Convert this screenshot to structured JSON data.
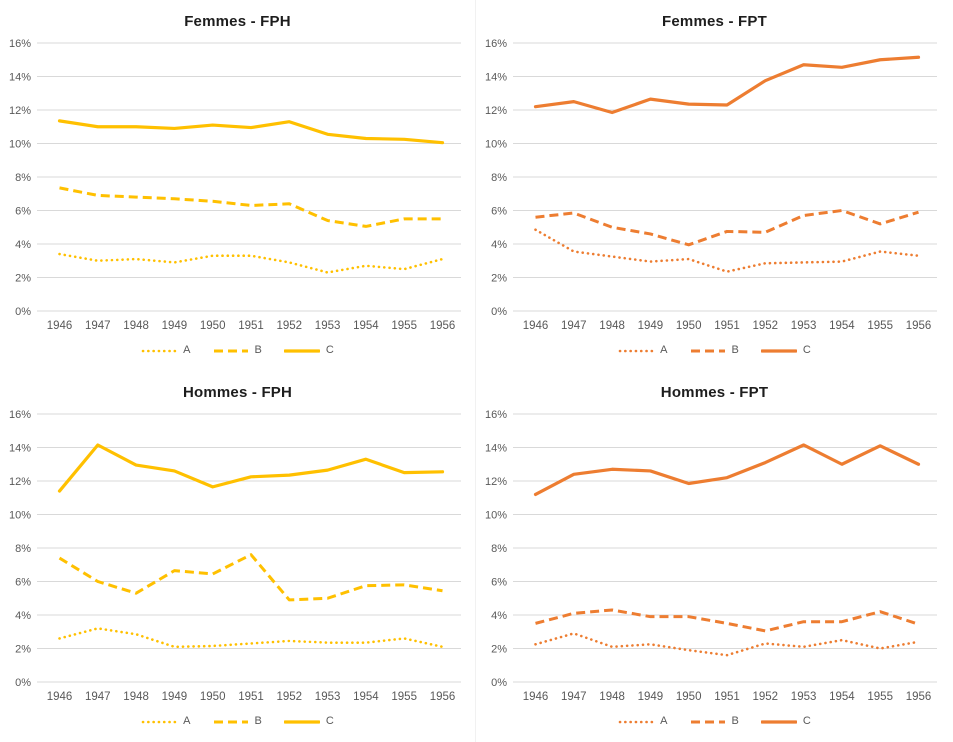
{
  "page": {
    "background": "#ffffff"
  },
  "colors": {
    "fph_accent": "#FFC000",
    "fpt_accent": "#ED7D31",
    "grid": "#D9D9D9",
    "tick_text": "#595959",
    "title_text": "#1d1d1d"
  },
  "chart_data": [
    {
      "type": "line",
      "title": "Femmes - FPH",
      "color": "#FFC000",
      "x": [
        1946,
        1947,
        1948,
        1949,
        1950,
        1951,
        1952,
        1953,
        1954,
        1955,
        1956
      ],
      "ylim": [
        0,
        16
      ],
      "ytick_step": 2,
      "ytick_suffix": "%",
      "grid": true,
      "legend_position": "bottom",
      "series": [
        {
          "name": "A",
          "style": "dotted",
          "values": [
            3.4,
            3.0,
            3.1,
            2.9,
            3.3,
            3.3,
            2.9,
            2.3,
            2.7,
            2.5,
            3.1
          ]
        },
        {
          "name": "B",
          "style": "dashed",
          "values": [
            7.35,
            6.9,
            6.8,
            6.7,
            6.55,
            6.3,
            6.4,
            5.4,
            5.05,
            5.5,
            5.5
          ]
        },
        {
          "name": "C",
          "style": "solid",
          "values": [
            11.35,
            11.0,
            11.0,
            10.9,
            11.1,
            10.95,
            11.3,
            10.55,
            10.3,
            10.25,
            10.05
          ]
        }
      ]
    },
    {
      "type": "line",
      "title": "Femmes - FPT",
      "color": "#ED7D31",
      "x": [
        1946,
        1947,
        1948,
        1949,
        1950,
        1951,
        1952,
        1953,
        1954,
        1955,
        1956
      ],
      "ylim": [
        0,
        16
      ],
      "ytick_step": 2,
      "ytick_suffix": "%",
      "grid": true,
      "legend_position": "bottom",
      "series": [
        {
          "name": "A",
          "style": "dotted",
          "values": [
            4.85,
            3.55,
            3.25,
            2.95,
            3.1,
            2.35,
            2.85,
            2.9,
            2.95,
            3.55,
            3.3
          ]
        },
        {
          "name": "B",
          "style": "dashed",
          "values": [
            5.6,
            5.85,
            5.0,
            4.6,
            3.95,
            4.75,
            4.7,
            5.7,
            6.0,
            5.2,
            5.9
          ]
        },
        {
          "name": "C",
          "style": "solid",
          "values": [
            12.2,
            12.5,
            11.85,
            12.65,
            12.35,
            12.3,
            13.75,
            14.7,
            14.55,
            15.0,
            15.15
          ]
        }
      ]
    },
    {
      "type": "line",
      "title": "Hommes - FPH",
      "color": "#FFC000",
      "x": [
        1946,
        1947,
        1948,
        1949,
        1950,
        1951,
        1952,
        1953,
        1954,
        1955,
        1956
      ],
      "ylim": [
        0,
        16
      ],
      "ytick_step": 2,
      "ytick_suffix": "%",
      "grid": true,
      "legend_position": "bottom",
      "series": [
        {
          "name": "A",
          "style": "dotted",
          "values": [
            2.6,
            3.2,
            2.85,
            2.1,
            2.15,
            2.3,
            2.45,
            2.35,
            2.35,
            2.6,
            2.1
          ]
        },
        {
          "name": "B",
          "style": "dashed",
          "values": [
            7.4,
            6.0,
            5.3,
            6.65,
            6.45,
            7.6,
            4.9,
            5.0,
            5.75,
            5.8,
            5.45
          ]
        },
        {
          "name": "C",
          "style": "solid",
          "values": [
            11.4,
            14.15,
            12.95,
            12.6,
            11.65,
            12.25,
            12.35,
            12.65,
            13.3,
            12.5,
            12.55
          ]
        }
      ]
    },
    {
      "type": "line",
      "title": "Hommes - FPT",
      "color": "#ED7D31",
      "x": [
        1946,
        1947,
        1948,
        1949,
        1950,
        1951,
        1952,
        1953,
        1954,
        1955,
        1956
      ],
      "ylim": [
        0,
        16
      ],
      "ytick_step": 2,
      "ytick_suffix": "%",
      "grid": true,
      "legend_position": "bottom",
      "series": [
        {
          "name": "A",
          "style": "dotted",
          "values": [
            2.25,
            2.9,
            2.1,
            2.25,
            1.9,
            1.6,
            2.3,
            2.1,
            2.5,
            2.0,
            2.4
          ]
        },
        {
          "name": "B",
          "style": "dashed",
          "values": [
            3.5,
            4.1,
            4.3,
            3.9,
            3.9,
            3.5,
            3.05,
            3.6,
            3.6,
            4.2,
            3.45
          ]
        },
        {
          "name": "C",
          "style": "solid",
          "values": [
            11.2,
            12.4,
            12.7,
            12.6,
            11.85,
            12.2,
            13.1,
            14.15,
            13.0,
            14.1,
            13.0
          ]
        }
      ]
    }
  ]
}
